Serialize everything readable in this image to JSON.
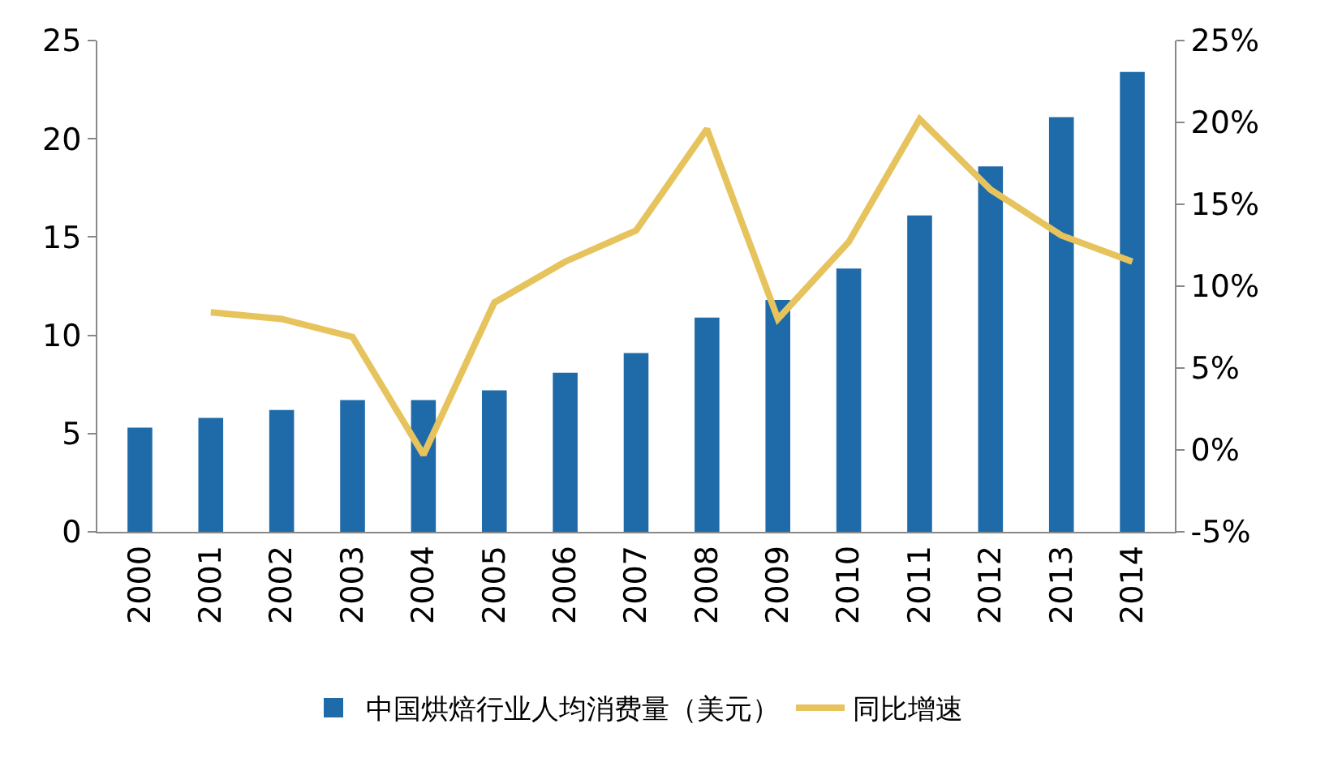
{
  "chart_data": {
    "type": "bar",
    "categories": [
      "2000",
      "2001",
      "2002",
      "2003",
      "2004",
      "2005",
      "2006",
      "2007",
      "2008",
      "2009",
      "2010",
      "2011",
      "2012",
      "2013",
      "2014"
    ],
    "series": [
      {
        "name": "中国烘焙行业人均消费量（美元）",
        "color": "#1f6aa8",
        "values": [
          5.3,
          5.8,
          6.2,
          6.7,
          6.7,
          7.2,
          8.1,
          9.1,
          10.9,
          11.8,
          13.4,
          16.1,
          18.6,
          21.1,
          23.4
        ]
      },
      {
        "name": "同比增速",
        "type": "line",
        "axis": "y2",
        "color": "#e6c35c",
        "values": [
          null,
          8.4,
          8.0,
          6.9,
          -0.3,
          9.0,
          11.5,
          13.4,
          19.6,
          8.0,
          12.7,
          20.2,
          15.9,
          13.1,
          11.5
        ]
      }
    ],
    "ylim": [
      0,
      25
    ],
    "yticks": [
      0,
      5,
      10,
      15,
      20,
      25
    ],
    "y2lim": [
      -5,
      25
    ],
    "y2ticks": [
      {
        "value": -5,
        "label": "-5%"
      },
      {
        "value": 0,
        "label": "0%"
      },
      {
        "value": 5,
        "label": "5%"
      },
      {
        "value": 10,
        "label": "10%"
      },
      {
        "value": 15,
        "label": "15%"
      },
      {
        "value": 20,
        "label": "20%"
      },
      {
        "value": 25,
        "label": "25%"
      }
    ],
    "grid": false,
    "legend": "bottom",
    "marker": "none",
    "line_style": "solid"
  }
}
